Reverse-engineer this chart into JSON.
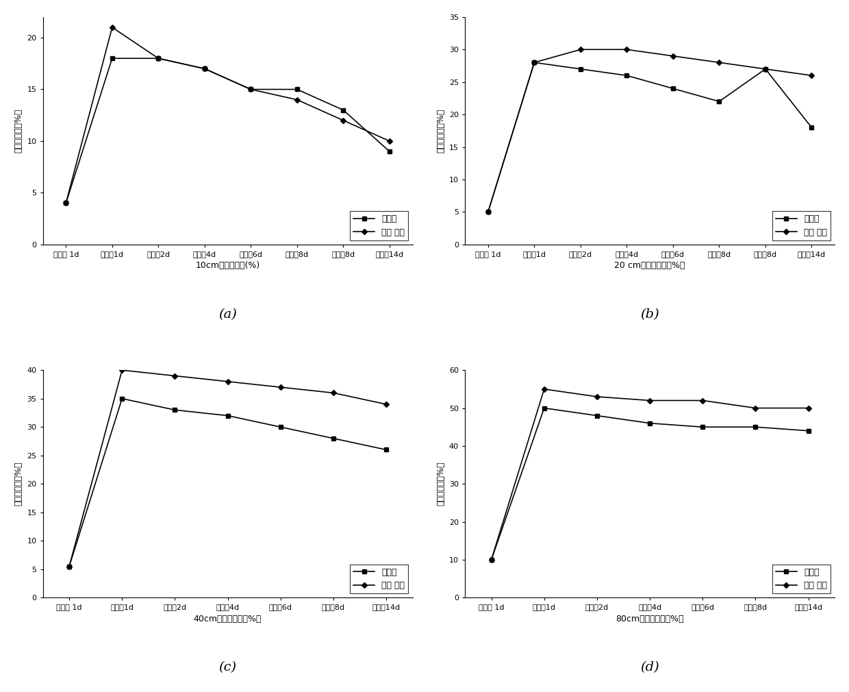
{
  "subplot_a": {
    "title": "10cm土层含水率(%)",
    "ylabel": "土壤含水率（%）",
    "ylim": [
      0,
      22
    ],
    "yticks": [
      0,
      5,
      10,
      15,
      20
    ],
    "control": [
      4,
      18,
      18,
      17,
      15,
      15,
      13,
      9
    ],
    "treatment": [
      4,
      21,
      18,
      17,
      15,
      14,
      12,
      10
    ],
    "label": "(a)",
    "n_points": 8
  },
  "subplot_b": {
    "title": "20 cm土层含水率（%）",
    "ylabel": "土壤含水率（%）",
    "ylim": [
      0,
      35
    ],
    "yticks": [
      0,
      5,
      10,
      15,
      20,
      25,
      30,
      35
    ],
    "control": [
      5,
      28,
      27,
      26,
      24,
      22,
      27,
      18
    ],
    "treatment": [
      5,
      28,
      30,
      30,
      29,
      28,
      27,
      26
    ],
    "label": "(b)",
    "n_points": 8
  },
  "subplot_c": {
    "title": "40cm土层含水率（%）",
    "ylabel": "土壤含水率（%）",
    "ylim": [
      0,
      40
    ],
    "yticks": [
      0,
      5,
      10,
      15,
      20,
      25,
      30,
      35,
      40
    ],
    "control": [
      5.5,
      35,
      33,
      32,
      30,
      28,
      26
    ],
    "treatment": [
      5.5,
      40,
      39,
      38,
      37,
      36,
      34
    ],
    "label": "(c)",
    "n_points": 7
  },
  "subplot_d": {
    "title": "80cm土层含水率（%）",
    "ylabel": "土壤含水率（%）",
    "ylim": [
      0,
      60
    ],
    "yticks": [
      0,
      10,
      20,
      30,
      40,
      50,
      60
    ],
    "control": [
      10,
      50,
      48,
      46,
      45,
      45,
      44
    ],
    "treatment": [
      10,
      55,
      53,
      52,
      52,
      50,
      50
    ],
    "label": "(d)",
    "n_points": 7
  },
  "x_labels_8": [
    "灌水前 1d",
    "灌水后1d",
    "灌水后2d",
    "灌水后4d",
    "灌水后6d",
    "灌水后8d",
    "灌水后8d",
    "灌水后14d"
  ],
  "x_labels_7": [
    "灌水前 1d",
    "灌水后1d",
    "灌水后2d",
    "灌水后4d",
    "灌水后6d",
    "灌水后8d",
    "灌水后14d"
  ],
  "legend_control": "对照组",
  "legend_treatment": "加保 水剂",
  "fontsize_tick": 8,
  "fontsize_label": 9,
  "fontsize_legend": 9,
  "fontsize_sublabel": 14
}
